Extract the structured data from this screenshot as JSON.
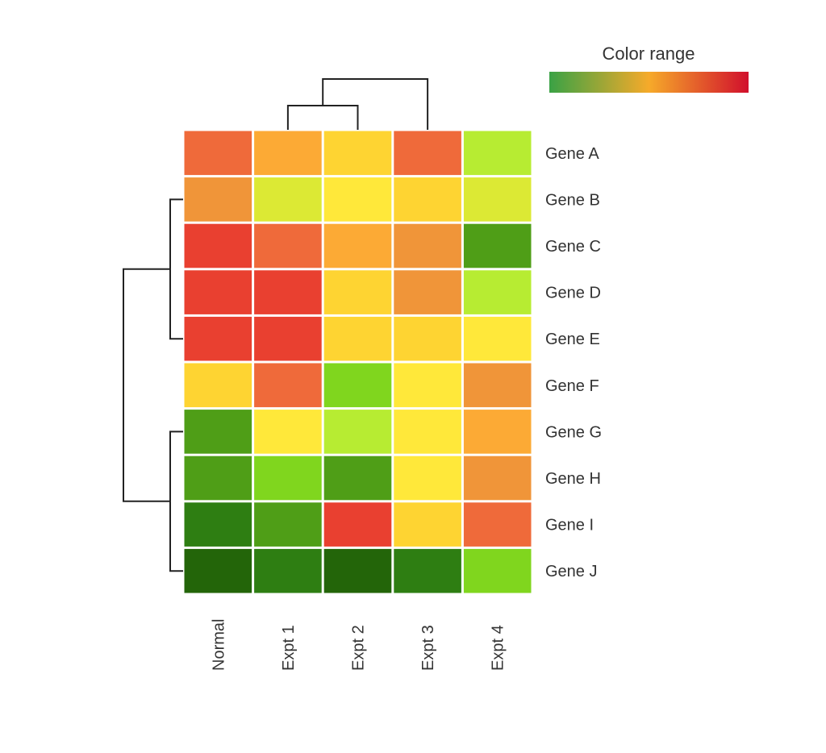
{
  "chart_data": {
    "type": "heatmap",
    "title": "",
    "xlabel": "",
    "ylabel": "",
    "legend": {
      "title": "Color range",
      "placement": "top-right",
      "gradient": [
        "#3aa245",
        "#f6aa2a",
        "#d10f2c"
      ]
    },
    "columns": [
      "Normal",
      "Expt 1",
      "Expt 2",
      "Expt 3",
      "Expt 4"
    ],
    "rows": [
      "Gene A",
      "Gene B",
      "Gene C",
      "Gene D",
      "Gene E",
      "Gene F",
      "Gene G",
      "Gene H",
      "Gene I",
      "Gene J"
    ],
    "cell_colors": [
      [
        "#ef6a3a",
        "#fcaa35",
        "#fed432",
        "#ef6a3a",
        "#b7ec32"
      ],
      [
        "#f09539",
        "#dce934",
        "#ffe83a",
        "#fed432",
        "#dce934"
      ],
      [
        "#e94030",
        "#ef6a3a",
        "#fcaa35",
        "#f09539",
        "#4f9e17"
      ],
      [
        "#e94030",
        "#e94030",
        "#fed432",
        "#f09539",
        "#b7ec32"
      ],
      [
        "#e94030",
        "#e94030",
        "#fed432",
        "#fed432",
        "#ffe83a"
      ],
      [
        "#fed432",
        "#ef6a3a",
        "#80d61e",
        "#ffe83a",
        "#f09539"
      ],
      [
        "#4f9e17",
        "#ffe83a",
        "#b7ec32",
        "#ffe83a",
        "#fcaa35"
      ],
      [
        "#4f9e17",
        "#80d61e",
        "#4f9e17",
        "#ffe83a",
        "#f09539"
      ],
      [
        "#2e7e12",
        "#4f9e17",
        "#e94030",
        "#fed432",
        "#ef6a3a"
      ],
      [
        "#236509",
        "#2e7e12",
        "#236509",
        "#2e7e12",
        "#80d61e"
      ]
    ]
  }
}
